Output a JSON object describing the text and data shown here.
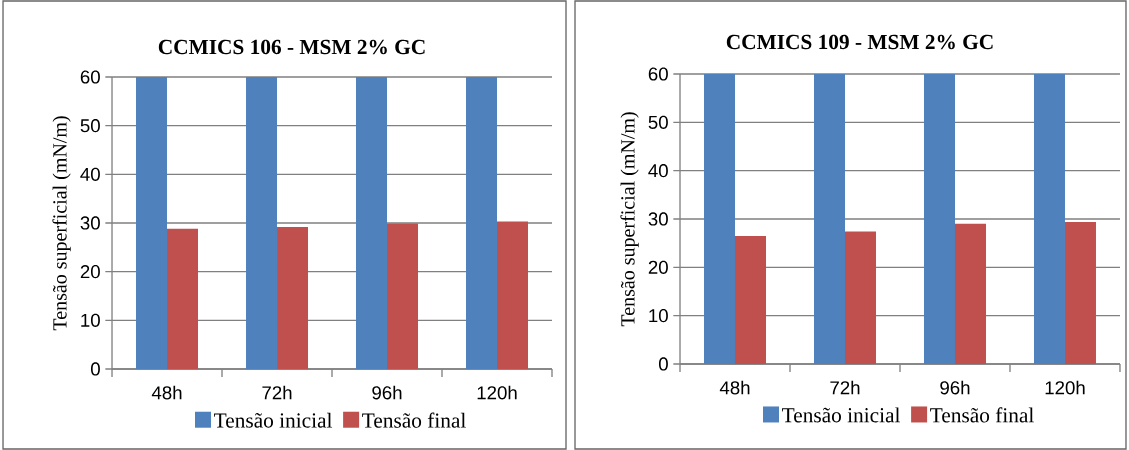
{
  "chart_data": [
    {
      "type": "bar",
      "title": "CCMICS  106  -  MSM 2% GC",
      "ylabel": "Tensão superficial (mN/m)",
      "categories": [
        "48h",
        "72h",
        "96h",
        "120h"
      ],
      "series": [
        {
          "name": "Tensão inicial",
          "color": "#4f81bd",
          "values": [
            60,
            60,
            60,
            60
          ]
        },
        {
          "name": "Tensão final",
          "color": "#c0504d",
          "values": [
            28.8,
            29.2,
            29.9,
            30.3
          ]
        }
      ],
      "ylim": [
        0,
        60
      ],
      "yticks": [
        0,
        10,
        20,
        30,
        40,
        50,
        60
      ],
      "grid": "y",
      "legend": "bottom"
    },
    {
      "type": "bar",
      "title": "CCMICS  109  -  MSM 2% GC",
      "ylabel": "Tensão superficial (mN/m)",
      "categories": [
        "48h",
        "72h",
        "96h",
        "120h"
      ],
      "series": [
        {
          "name": "Tensão inicial",
          "color": "#4f81bd",
          "values": [
            60,
            60,
            60,
            60
          ]
        },
        {
          "name": "Tensão final",
          "color": "#c0504d",
          "values": [
            26.5,
            27.4,
            29.0,
            29.4
          ]
        }
      ],
      "ylim": [
        0,
        60
      ],
      "yticks": [
        0,
        10,
        20,
        30,
        40,
        50,
        60
      ],
      "grid": "y",
      "legend": "bottom"
    }
  ]
}
